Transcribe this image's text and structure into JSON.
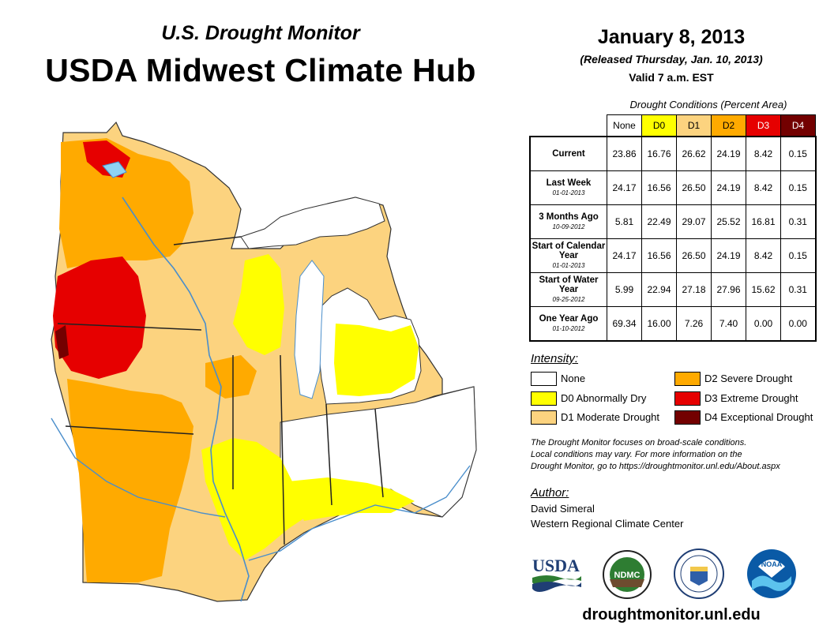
{
  "header": {
    "subtitle": "U.S. Drought Monitor",
    "title": "USDA Midwest Climate Hub"
  },
  "info": {
    "date": "January 8, 2013",
    "released": "(Released Thursday, Jan. 10, 2013)",
    "valid": "Valid 7 a.m. EST"
  },
  "conditions": {
    "title": "Drought Conditions (Percent Area)",
    "columns": [
      "None",
      "D0",
      "D1",
      "D2",
      "D3",
      "D4"
    ],
    "rows": [
      {
        "label": "Current",
        "date": "",
        "values": [
          "23.86",
          "16.76",
          "26.62",
          "24.19",
          "8.42",
          "0.15"
        ]
      },
      {
        "label": "Last Week",
        "date": "01-01-2013",
        "values": [
          "24.17",
          "16.56",
          "26.50",
          "24.19",
          "8.42",
          "0.15"
        ]
      },
      {
        "label": "3 Months Ago",
        "date": "10-09-2012",
        "values": [
          "5.81",
          "22.49",
          "29.07",
          "25.52",
          "16.81",
          "0.31"
        ]
      },
      {
        "label": "Start of Calendar Year",
        "date": "01-01-2013",
        "values": [
          "24.17",
          "16.56",
          "26.50",
          "24.19",
          "8.42",
          "0.15"
        ]
      },
      {
        "label": "Start of Water Year",
        "date": "09-25-2012",
        "values": [
          "5.99",
          "22.94",
          "27.18",
          "27.96",
          "15.62",
          "0.31"
        ]
      },
      {
        "label": "One Year Ago",
        "date": "01-10-2012",
        "values": [
          "69.34",
          "16.00",
          "7.26",
          "7.40",
          "0.00",
          "0.00"
        ]
      }
    ]
  },
  "legend": {
    "title": "Intensity:",
    "items": [
      {
        "label": "None",
        "color": "#ffffff"
      },
      {
        "label": "D0 Abnormally Dry",
        "color": "#ffff00"
      },
      {
        "label": "D1 Moderate Drought",
        "color": "#fcd37f"
      },
      {
        "label": "D2 Severe Drought",
        "color": "#ffaa00"
      },
      {
        "label": "D3 Extreme Drought",
        "color": "#e60000"
      },
      {
        "label": "D4 Exceptional Drought",
        "color": "#730000"
      }
    ]
  },
  "note": {
    "line1": "The Drought Monitor focuses on broad-scale conditions.",
    "line2": "Local conditions may vary. For more information on the",
    "line3": "Drought Monitor, go to https://droughtmonitor.unl.edu/About.aspx"
  },
  "author": {
    "title": "Author:",
    "name": "David Simeral",
    "org": "Western Regional Climate Center"
  },
  "logos": {
    "usda": "USDA",
    "ndmc": "NDMC",
    "noaa": "NOAA"
  },
  "website": "droughtmonitor.unl.edu",
  "colors": {
    "none": "#ffffff",
    "d0": "#ffff00",
    "d1": "#fcd37f",
    "d2": "#ffaa00",
    "d3": "#e60000",
    "d4": "#730000",
    "water": "#8fd3f4",
    "river": "#4a8ecb"
  }
}
